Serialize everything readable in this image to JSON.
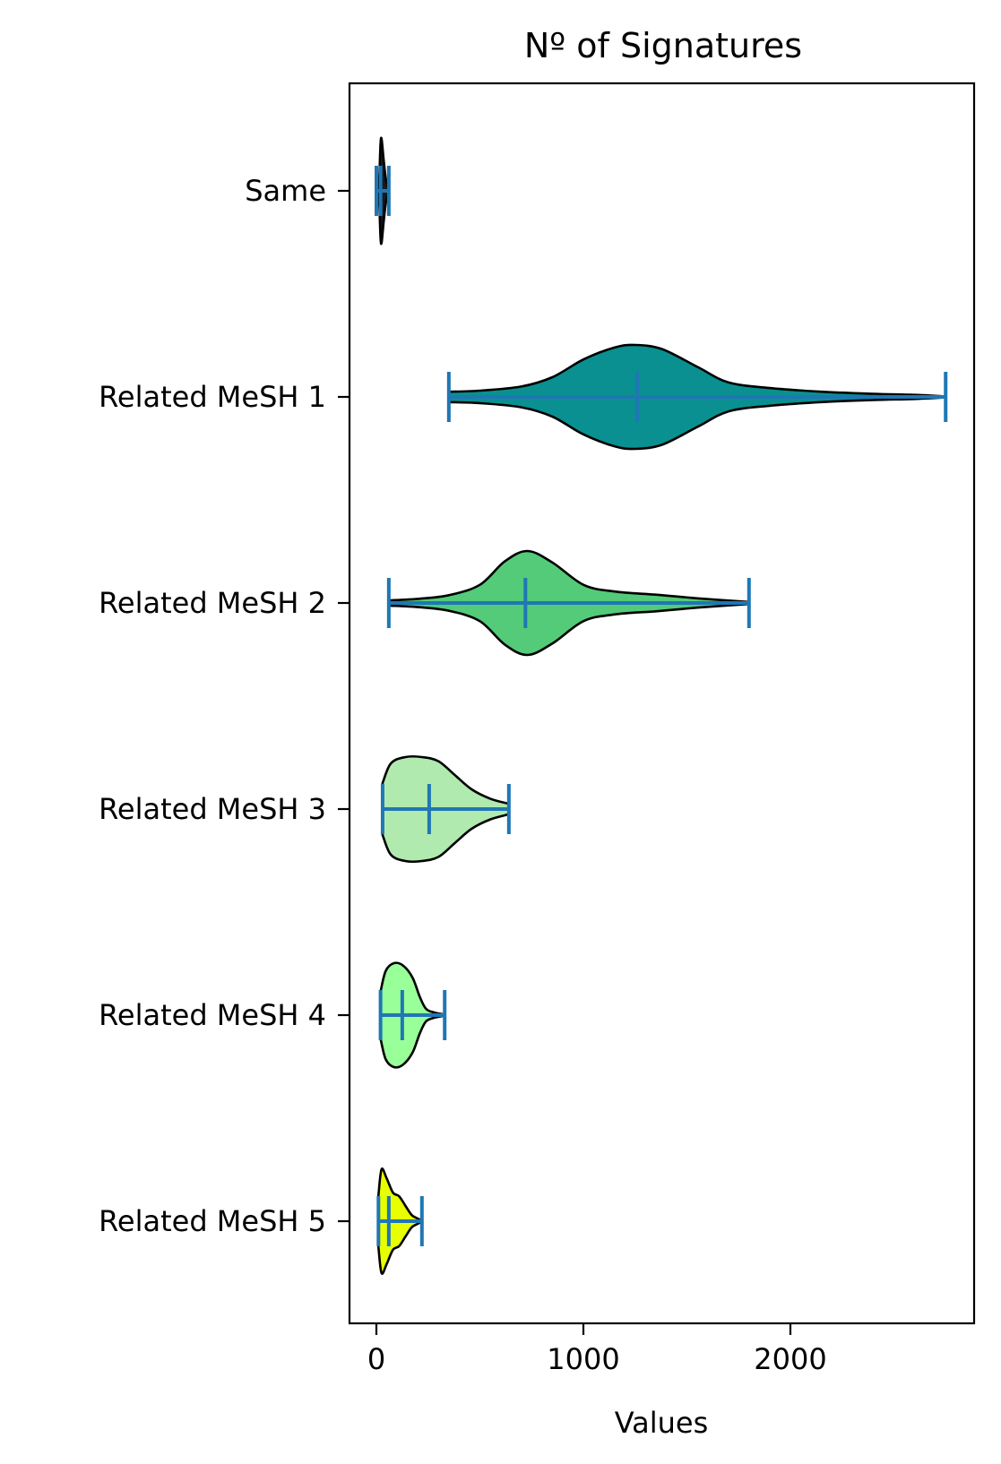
{
  "chart_data": {
    "type": "violin",
    "orientation": "horizontal",
    "title": "Nº of Signatures",
    "xlabel": "Values",
    "ylabel": "",
    "xlim": [
      -130,
      2880
    ],
    "xticks": [
      0,
      1000,
      2000
    ],
    "grid": false,
    "categories": [
      "Same",
      "Related MeSH 1",
      "Related MeSH 2",
      "Related MeSH 3",
      "Related MeSH 4",
      "Related MeSH 5"
    ],
    "accent_line_color": "#1f77b4",
    "series": [
      {
        "category": "Same",
        "color": "#1a1a1a",
        "min": 0,
        "max": 60,
        "mean": 20,
        "profile": [
          [
            10,
            0.02
          ],
          [
            15,
            0.35
          ],
          [
            20,
            0.9
          ],
          [
            25,
            1.0
          ],
          [
            35,
            0.6
          ],
          [
            45,
            0.25
          ],
          [
            55,
            0.06
          ]
        ]
      },
      {
        "category": "Related MeSH 1",
        "color": "#0a9090",
        "min": 350,
        "max": 2750,
        "mean": 1260,
        "profile": [
          [
            350,
            0.1
          ],
          [
            500,
            0.12
          ],
          [
            700,
            0.2
          ],
          [
            850,
            0.38
          ],
          [
            1000,
            0.72
          ],
          [
            1150,
            0.95
          ],
          [
            1250,
            1.0
          ],
          [
            1380,
            0.92
          ],
          [
            1550,
            0.58
          ],
          [
            1700,
            0.28
          ],
          [
            1900,
            0.17
          ],
          [
            2150,
            0.1
          ],
          [
            2400,
            0.06
          ],
          [
            2600,
            0.04
          ],
          [
            2750,
            0.01
          ]
        ]
      },
      {
        "category": "Related MeSH 2",
        "color": "#53cb79",
        "min": 60,
        "max": 1800,
        "mean": 720,
        "profile": [
          [
            60,
            0.05
          ],
          [
            200,
            0.08
          ],
          [
            350,
            0.15
          ],
          [
            500,
            0.35
          ],
          [
            620,
            0.8
          ],
          [
            730,
            1.0
          ],
          [
            850,
            0.78
          ],
          [
            1000,
            0.35
          ],
          [
            1150,
            0.22
          ],
          [
            1350,
            0.16
          ],
          [
            1550,
            0.09
          ],
          [
            1800,
            0.02
          ]
        ]
      },
      {
        "category": "Related MeSH 3",
        "color": "#b0eaae",
        "min": 30,
        "max": 640,
        "mean": 255,
        "profile": [
          [
            30,
            0.5
          ],
          [
            70,
            0.88
          ],
          [
            140,
            1.0
          ],
          [
            220,
            1.0
          ],
          [
            300,
            0.92
          ],
          [
            380,
            0.65
          ],
          [
            460,
            0.38
          ],
          [
            550,
            0.2
          ],
          [
            640,
            0.1
          ]
        ]
      },
      {
        "category": "Related MeSH 4",
        "color": "#99ff99",
        "min": 20,
        "max": 330,
        "mean": 125,
        "profile": [
          [
            20,
            0.45
          ],
          [
            45,
            0.85
          ],
          [
            85,
            1.0
          ],
          [
            130,
            0.95
          ],
          [
            175,
            0.72
          ],
          [
            210,
            0.35
          ],
          [
            240,
            0.12
          ],
          [
            280,
            0.05
          ],
          [
            330,
            0.01
          ]
        ]
      },
      {
        "category": "Related MeSH 5",
        "color": "#e8ff00",
        "min": 10,
        "max": 220,
        "mean": 60,
        "profile": [
          [
            10,
            0.5
          ],
          [
            25,
            1.0
          ],
          [
            50,
            0.82
          ],
          [
            80,
            0.55
          ],
          [
            110,
            0.48
          ],
          [
            140,
            0.3
          ],
          [
            170,
            0.12
          ],
          [
            200,
            0.05
          ],
          [
            220,
            0.01
          ]
        ]
      }
    ]
  }
}
